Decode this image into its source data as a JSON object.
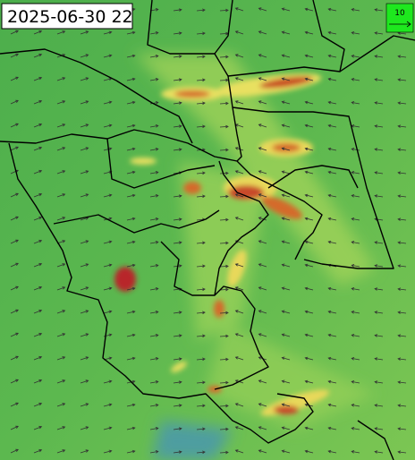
{
  "timestamp": "2025-06-30 22",
  "legend": {
    "label": "10"
  }
}
